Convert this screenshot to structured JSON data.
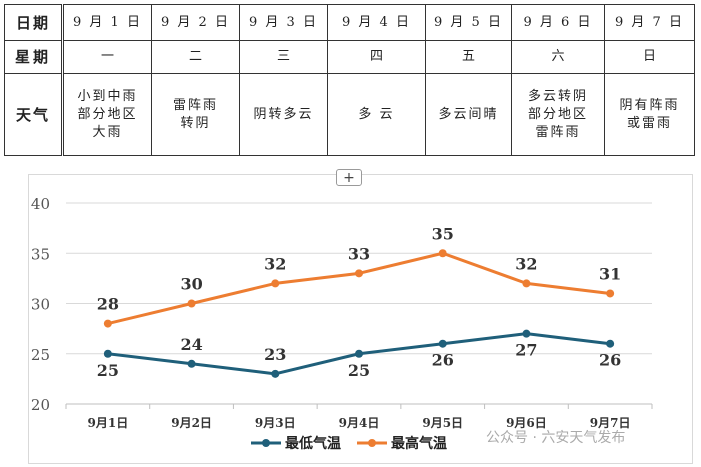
{
  "table": {
    "header_labels": [
      "日期",
      "星期",
      "天气"
    ],
    "dates": [
      "9 月 1 日",
      "9 月 2 日",
      "9 月 3 日",
      "9 月 4 日",
      "9 月 5 日",
      "9 月 6 日",
      "9 月 7 日"
    ],
    "weekdays": [
      "一",
      "二",
      "三",
      "四",
      "五",
      "六",
      "日"
    ],
    "weather": [
      [
        "小到中雨",
        "部分地区",
        "大雨"
      ],
      [
        "雷阵雨",
        "转阴"
      ],
      [
        "阴转多云"
      ],
      [
        "多 云"
      ],
      [
        "多云间晴"
      ],
      [
        "多云转阴",
        "部分地区",
        "雷阵雨"
      ],
      [
        "阴有阵雨",
        "或雷雨"
      ]
    ]
  },
  "toolbar": {
    "plus_label": "+"
  },
  "watermark": "公众号 · 六安天气发布",
  "chart_data": {
    "type": "line",
    "categories": [
      "9月1日",
      "9月2日",
      "9月3日",
      "9月4日",
      "9月5日",
      "9月6日",
      "9月7日"
    ],
    "series": [
      {
        "name": "最低气温",
        "values": [
          25,
          24,
          23,
          25,
          26,
          27,
          26
        ],
        "color": "#1f5f7a"
      },
      {
        "name": "最高气温",
        "values": [
          28,
          30,
          32,
          33,
          35,
          32,
          31
        ],
        "color": "#ed7d31"
      }
    ],
    "ylim": [
      20,
      40
    ],
    "yticks": [
      20,
      25,
      30,
      35,
      40
    ],
    "grid": true,
    "legend": "bottom"
  }
}
